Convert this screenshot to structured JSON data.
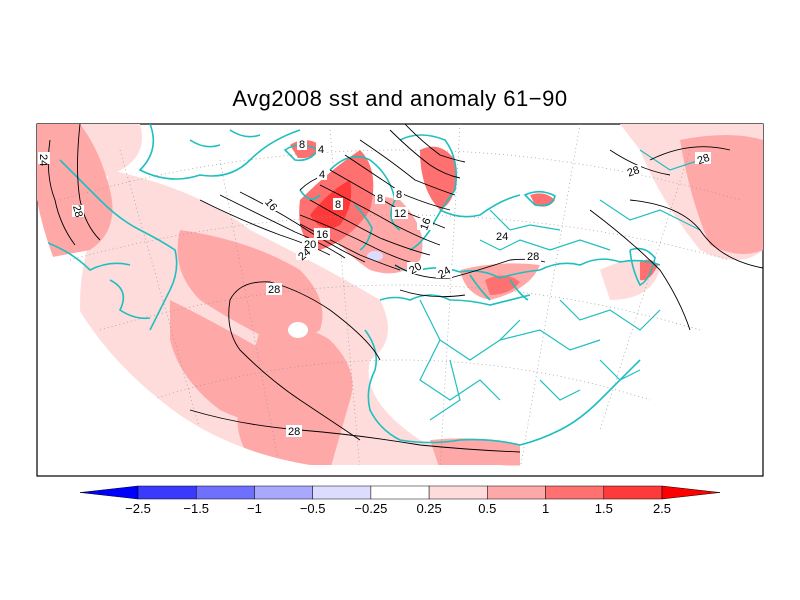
{
  "title": "Avg2008 sst and anomaly 61−90",
  "contour_labels": [
    "24",
    "28",
    "28",
    "28",
    "8",
    "4",
    "8",
    "4",
    "8",
    "8",
    "12",
    "16",
    "16",
    "20",
    "24",
    "28",
    "20",
    "24",
    "24",
    "28",
    "16",
    "28"
  ],
  "colorbar": {
    "tick_labels": [
      "−2.5",
      "−1.5",
      "−1",
      "−0.5",
      "−0.25",
      "0.25",
      "0.5",
      "1",
      "1.5",
      "2.5"
    ],
    "colors": [
      "#0000ff",
      "#3a3aff",
      "#7070ff",
      "#a8a8ff",
      "#dcdcff",
      "#ffffff",
      "#ffdcdc",
      "#ffa8a8",
      "#ff7070",
      "#ff3a3a",
      "#ff0000"
    ]
  },
  "colors": {
    "coastline": "#1fbfbf",
    "contour": "#000000",
    "grid": "#999999"
  }
}
